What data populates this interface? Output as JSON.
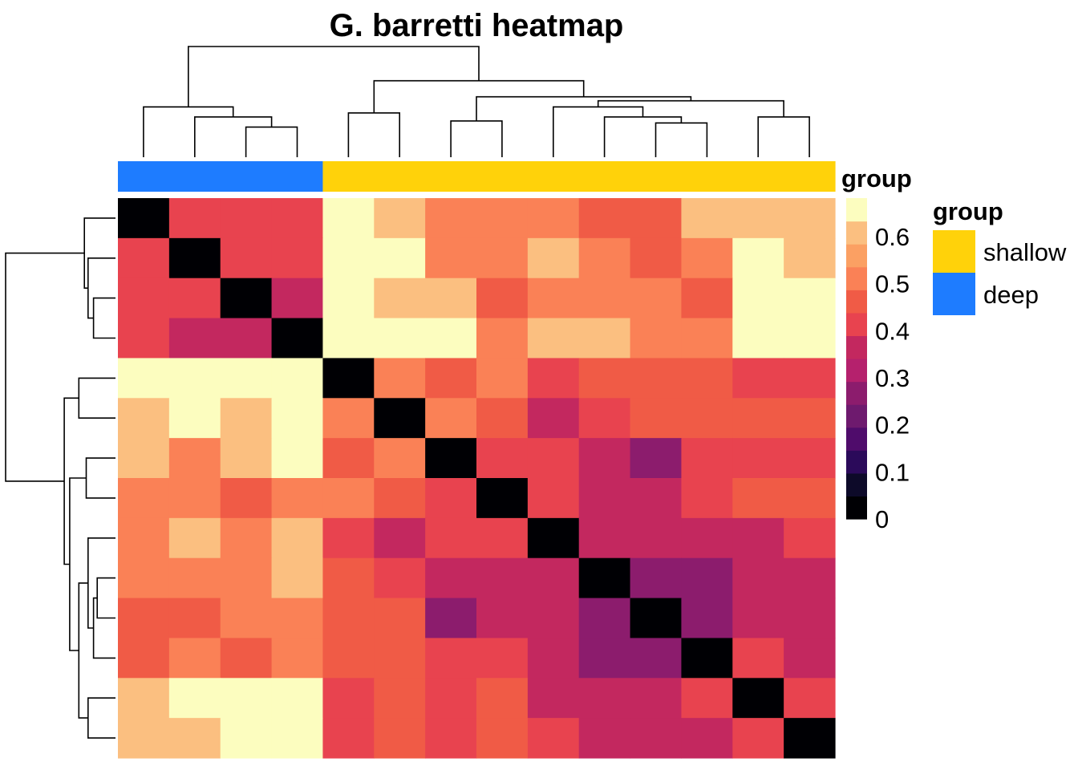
{
  "chart_data": {
    "type": "heatmap",
    "title": "G. barretti heatmap",
    "values": [
      [
        0,
        0.4,
        0.4,
        0.4,
        0.65,
        0.6,
        0.5,
        0.5,
        0.5,
        0.45,
        0.45,
        0.6,
        0.6,
        0.6
      ],
      [
        0.4,
        0,
        0.4,
        0.4,
        0.65,
        0.65,
        0.5,
        0.5,
        0.6,
        0.5,
        0.45,
        0.5,
        0.65,
        0.6
      ],
      [
        0.4,
        0.4,
        0,
        0.35,
        0.65,
        0.6,
        0.6,
        0.45,
        0.5,
        0.5,
        0.5,
        0.45,
        0.65,
        0.65
      ],
      [
        0.4,
        0.35,
        0.35,
        0,
        0.65,
        0.65,
        0.65,
        0.5,
        0.6,
        0.6,
        0.5,
        0.5,
        0.65,
        0.65
      ],
      [
        0.65,
        0.65,
        0.65,
        0.65,
        0,
        0.5,
        0.45,
        0.5,
        0.4,
        0.45,
        0.45,
        0.45,
        0.4,
        0.4
      ],
      [
        0.6,
        0.65,
        0.6,
        0.65,
        0.5,
        0,
        0.5,
        0.45,
        0.35,
        0.4,
        0.45,
        0.45,
        0.45,
        0.45
      ],
      [
        0.6,
        0.5,
        0.6,
        0.65,
        0.45,
        0.5,
        0,
        0.4,
        0.4,
        0.35,
        0.25,
        0.4,
        0.4,
        0.4
      ],
      [
        0.5,
        0.5,
        0.45,
        0.5,
        0.5,
        0.45,
        0.4,
        0,
        0.4,
        0.35,
        0.35,
        0.4,
        0.45,
        0.45
      ],
      [
        0.5,
        0.6,
        0.5,
        0.6,
        0.4,
        0.35,
        0.4,
        0.4,
        0,
        0.35,
        0.35,
        0.35,
        0.35,
        0.4
      ],
      [
        0.5,
        0.5,
        0.5,
        0.6,
        0.45,
        0.4,
        0.35,
        0.35,
        0.35,
        0,
        0.25,
        0.25,
        0.35,
        0.35
      ],
      [
        0.45,
        0.45,
        0.5,
        0.5,
        0.45,
        0.45,
        0.25,
        0.35,
        0.35,
        0.25,
        0,
        0.25,
        0.35,
        0.35
      ],
      [
        0.45,
        0.5,
        0.45,
        0.5,
        0.45,
        0.45,
        0.4,
        0.4,
        0.35,
        0.25,
        0.25,
        0,
        0.4,
        0.35
      ],
      [
        0.6,
        0.65,
        0.65,
        0.65,
        0.4,
        0.45,
        0.4,
        0.45,
        0.35,
        0.35,
        0.35,
        0.4,
        0,
        0.4
      ],
      [
        0.6,
        0.6,
        0.65,
        0.65,
        0.4,
        0.45,
        0.4,
        0.45,
        0.4,
        0.35,
        0.35,
        0.35,
        0.4,
        0
      ]
    ],
    "column_groups": [
      "deep",
      "deep",
      "deep",
      "deep",
      "shallow",
      "shallow",
      "shallow",
      "shallow",
      "shallow",
      "shallow",
      "shallow",
      "shallow",
      "shallow",
      "shallow"
    ],
    "color_scale": {
      "title": "group",
      "breaks": [
        0,
        0.05,
        0.1,
        0.15,
        0.2,
        0.25,
        0.3,
        0.35,
        0.4,
        0.45,
        0.5,
        0.55,
        0.6,
        0.65
      ],
      "colors": [
        "#000004",
        "#0d0a29",
        "#2b0a5a",
        "#4f0c6b",
        "#6e1a6e",
        "#8c1c6d",
        "#b5216d",
        "#c3285f",
        "#e8434f",
        "#f05b46",
        "#fa8156",
        "#fba063",
        "#fbbf80",
        "#fcfdbf"
      ],
      "tick_labels": [
        "0",
        "0.1",
        "0.2",
        "0.3",
        "0.4",
        "0.5",
        "0.6"
      ],
      "tick_values": [
        0,
        0.1,
        0.2,
        0.3,
        0.4,
        0.5,
        0.6
      ]
    },
    "annotation_title": "group",
    "legend": {
      "title": "group",
      "items": [
        {
          "label": "shallow",
          "color": "#FFD20A"
        },
        {
          "label": "deep",
          "color": "#1E7CFF"
        }
      ]
    },
    "column_dendrogram": {
      "merges": [
        [
          3,
          4,
          0.15
        ],
        [
          2,
          -1,
          0.2
        ],
        [
          1,
          -2,
          0.25
        ],
        [
          5,
          6,
          0.22
        ],
        [
          7,
          8,
          0.18
        ],
        [
          11,
          12,
          0.17
        ],
        [
          10,
          -6,
          0.2
        ],
        [
          9,
          -7,
          0.25
        ],
        [
          13,
          14,
          0.2
        ],
        [
          -8,
          -9,
          0.28
        ],
        [
          -5,
          -10,
          0.3
        ],
        [
          -4,
          -11,
          0.38
        ],
        [
          -3,
          -12,
          0.55
        ]
      ]
    },
    "row_dendrogram": {
      "merges": [
        [
          3,
          4,
          0.12
        ],
        [
          2,
          -1,
          0.15
        ],
        [
          1,
          -2,
          0.17
        ],
        [
          5,
          6,
          0.2
        ],
        [
          7,
          8,
          0.16
        ],
        [
          10,
          11,
          0.1
        ],
        [
          12,
          -6,
          0.12
        ],
        [
          9,
          -7,
          0.15
        ],
        [
          13,
          14,
          0.15
        ],
        [
          -8,
          -9,
          0.2
        ],
        [
          -5,
          -10,
          0.25
        ],
        [
          -4,
          -11,
          0.28
        ],
        [
          -3,
          -12,
          0.6
        ]
      ]
    }
  }
}
